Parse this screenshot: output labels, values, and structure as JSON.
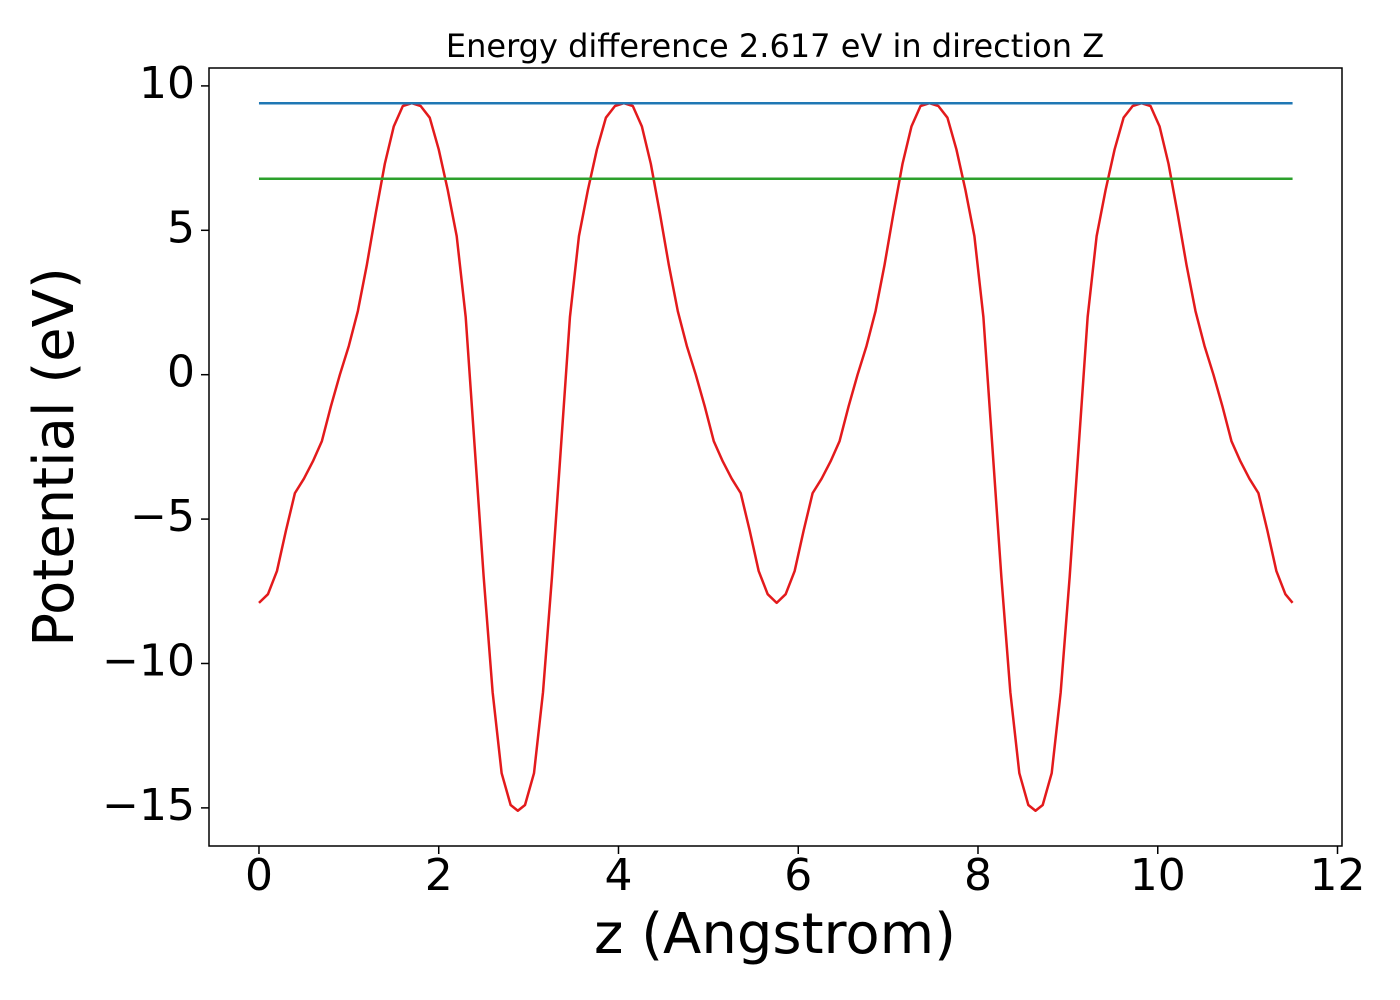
{
  "chart_data": {
    "type": "line",
    "title": "Energy difference 2.617 eV in direction Z",
    "xlabel": "z (Angstrom)",
    "ylabel": "Potential (eV)",
    "xlim": [
      -0.556,
      12.05
    ],
    "ylim": [
      -16.32,
      10.62
    ],
    "xticks": [
      0,
      2,
      4,
      6,
      8,
      10,
      12
    ],
    "yticks": [
      {
        "value": -15,
        "label": "−15"
      },
      {
        "value": -10,
        "label": "−10"
      },
      {
        "value": -5,
        "label": "−5"
      },
      0,
      5,
      10
    ],
    "grid": false,
    "series": [
      {
        "color": "#e31a1c",
        "x": [
          0,
          0.1,
          0.2,
          0.3,
          0.4,
          0.5,
          0.6,
          0.7,
          0.8,
          0.9,
          1.0,
          1.1,
          1.2,
          1.3,
          1.4,
          1.5,
          1.6,
          1.7,
          1.8,
          1.9,
          2.0,
          2.1,
          2.2,
          2.3,
          2.4,
          2.5,
          2.6,
          2.7,
          2.8,
          2.88,
          2.96,
          3.06,
          3.16,
          3.26,
          3.36,
          3.46,
          3.56,
          3.66,
          3.76,
          3.86,
          3.96,
          4.06,
          4.16,
          4.26,
          4.36,
          4.46,
          4.56,
          4.66,
          4.76,
          4.86,
          4.96,
          5.06,
          5.16,
          5.26,
          5.36,
          5.46,
          5.56,
          5.66,
          5.76,
          5.86,
          5.96,
          6.06,
          6.16,
          6.26,
          6.36,
          6.46,
          6.56,
          6.66,
          6.76,
          6.86,
          6.96,
          7.06,
          7.16,
          7.26,
          7.36,
          7.46,
          7.56,
          7.66,
          7.76,
          7.86,
          7.96,
          8.06,
          8.16,
          8.26,
          8.36,
          8.46,
          8.56,
          8.64,
          8.72,
          8.82,
          8.92,
          9.02,
          9.12,
          9.22,
          9.32,
          9.42,
          9.52,
          9.62,
          9.72,
          9.82,
          9.92,
          10.02,
          10.12,
          10.22,
          10.32,
          10.42,
          10.52,
          10.62,
          10.72,
          10.82,
          10.92,
          11.02,
          11.12,
          11.22,
          11.32,
          11.42,
          11.5
        ],
        "values": [
          -7.9,
          -7.6,
          -6.8,
          -5.4,
          -4.1,
          -3.6,
          -3.0,
          -2.3,
          -1.1,
          0.0,
          1.0,
          2.2,
          3.8,
          5.6,
          7.3,
          8.6,
          9.3,
          9.4,
          9.3,
          8.9,
          7.8,
          6.4,
          4.8,
          2.0,
          -2.5,
          -7,
          -11,
          -13.8,
          -14.9,
          -15.1,
          -14.9,
          -13.8,
          -11,
          -7,
          -2.5,
          2.0,
          4.8,
          6.4,
          7.8,
          8.9,
          9.3,
          9.4,
          9.3,
          8.6,
          7.3,
          5.6,
          3.8,
          2.2,
          1.0,
          0.0,
          -1.1,
          -2.3,
          -3.0,
          -3.6,
          -4.1,
          -5.4,
          -6.8,
          -7.6,
          -7.9,
          -7.6,
          -6.8,
          -5.4,
          -4.1,
          -3.6,
          -3.0,
          -2.3,
          -1.1,
          0.0,
          1.0,
          2.2,
          3.8,
          5.6,
          7.3,
          8.6,
          9.3,
          9.4,
          9.3,
          8.9,
          7.8,
          6.4,
          4.8,
          2.0,
          -2.5,
          -7,
          -11,
          -13.8,
          -14.9,
          -15.1,
          -14.9,
          -13.8,
          -11,
          -7,
          -2.5,
          2.0,
          4.8,
          6.4,
          7.8,
          8.9,
          9.3,
          9.4,
          9.3,
          8.6,
          7.3,
          5.6,
          3.8,
          2.2,
          1.0,
          0.0,
          -1.1,
          -2.3,
          -3.0,
          -3.6,
          -4.1,
          -5.4,
          -6.8,
          -7.6,
          -7.9
        ]
      },
      {
        "color": "#1f77b4",
        "x": [
          0,
          11.5
        ],
        "values": [
          9.4,
          9.4
        ]
      },
      {
        "color": "#2ca02c",
        "x": [
          0,
          11.5
        ],
        "values": [
          6.783,
          6.783
        ]
      }
    ]
  }
}
